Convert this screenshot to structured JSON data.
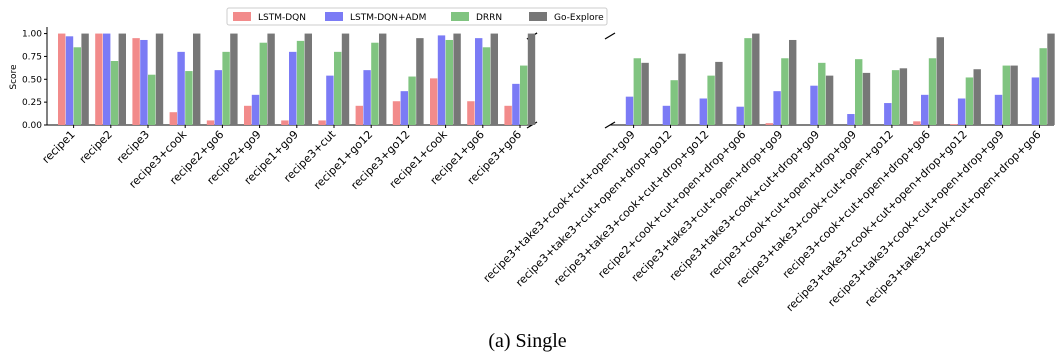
{
  "chart_data": {
    "type": "bar",
    "ylabel": "Score",
    "ylim": [
      0,
      1.05
    ],
    "yticks": [
      "0.00",
      "0.25",
      "0.50",
      "0.75",
      "1.00"
    ],
    "legend_position": "top-center",
    "colors": [
      "#f28b8b",
      "#7b7bf5",
      "#80c480",
      "#777777"
    ],
    "series": [
      {
        "name": "LSTM-DQN"
      },
      {
        "name": "LSTM-DQN+ADM"
      },
      {
        "name": "DRRN"
      },
      {
        "name": "Go-Explore"
      }
    ],
    "panels": [
      {
        "categories": [
          "recipe1",
          "recipe2",
          "recipe3",
          "recipe3+cook",
          "recipe2+go6",
          "recipe2+go9",
          "recipe1+go9",
          "recipe3+cut",
          "recipe1+go12",
          "recipe3+go12",
          "recipe1+cook",
          "recipe1+go6",
          "recipe3+go6"
        ],
        "values": [
          [
            1.0,
            1.0,
            0.95,
            0.14,
            0.05,
            0.21,
            0.05,
            0.05,
            0.21,
            0.26,
            0.51,
            0.26,
            0.21
          ],
          [
            0.97,
            1.0,
            0.93,
            0.8,
            0.6,
            0.33,
            0.8,
            0.54,
            0.6,
            0.37,
            0.98,
            0.95,
            0.45
          ],
          [
            0.85,
            0.7,
            0.55,
            0.59,
            0.8,
            0.9,
            0.92,
            0.8,
            0.9,
            0.53,
            0.93,
            0.85,
            0.65
          ],
          [
            1.0,
            1.0,
            1.0,
            1.0,
            1.0,
            1.0,
            1.0,
            1.0,
            1.0,
            0.95,
            1.0,
            1.0,
            1.0
          ]
        ]
      },
      {
        "categories": [
          "recipe3+take3+cook+cut+open+go9",
          "recipe3+take3+cut+open+drop+go12",
          "recipe3+take3+cook+cut+drop+go12",
          "recipe2+cook+cut+open+drop+go6",
          "recipe3+take3+cut+open+drop+go9",
          "recipe3+take3+cook+cut+drop+go9",
          "recipe3+cook+cut+open+drop+go9",
          "recipe3+take3+cook+cut+open+go12",
          "recipe3+cook+cut+open+drop+go6",
          "recipe3+take3+cook+cut+open+drop+go12",
          "recipe3+take3+cook+cut+open+drop+go9",
          "recipe3+take3+cook+cut+open+drop+go6"
        ],
        "values": [
          [
            0.0,
            0.0,
            0.0,
            0.0,
            0.02,
            0.0,
            0.0,
            0.0,
            0.04,
            0.01,
            0.0,
            0.0
          ],
          [
            0.31,
            0.21,
            0.29,
            0.2,
            0.37,
            0.43,
            0.12,
            0.24,
            0.33,
            0.29,
            0.33,
            0.52
          ],
          [
            0.73,
            0.49,
            0.54,
            0.95,
            0.73,
            0.68,
            0.72,
            0.6,
            0.73,
            0.52,
            0.65,
            0.84
          ],
          [
            0.68,
            0.78,
            0.69,
            1.0,
            0.93,
            0.54,
            0.57,
            0.62,
            0.96,
            0.61,
            0.65,
            1.0
          ]
        ]
      }
    ]
  },
  "caption": "(a) Single"
}
